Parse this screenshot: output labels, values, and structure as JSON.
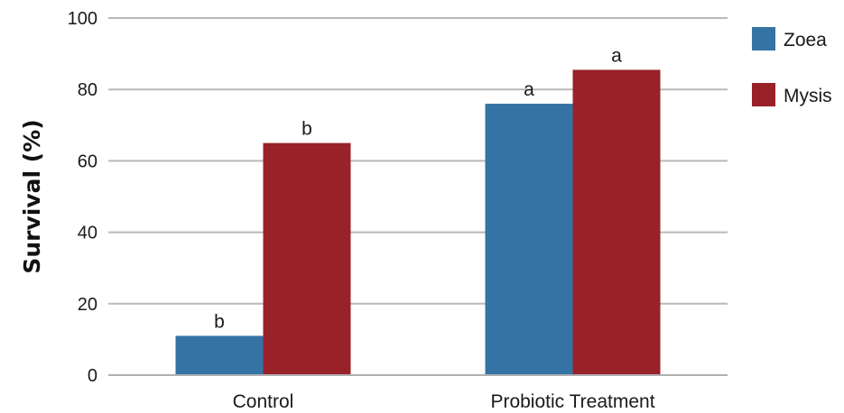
{
  "chart_data": {
    "type": "bar",
    "title": "",
    "xlabel": "",
    "ylabel": "Survival (%)",
    "ylim": [
      0,
      100
    ],
    "yticks": [
      0,
      20,
      40,
      60,
      80,
      100
    ],
    "grid": true,
    "legend_position": "top-right",
    "categories": [
      "Control",
      "Probiotic Treatment"
    ],
    "series": [
      {
        "name": "Zoea",
        "color": "#3473a4",
        "values": [
          11,
          76
        ],
        "labels": [
          "b",
          "a"
        ]
      },
      {
        "name": "Mysis",
        "color": "#992128",
        "values": [
          65,
          85.5
        ],
        "labels": [
          "b",
          "a"
        ]
      }
    ]
  }
}
